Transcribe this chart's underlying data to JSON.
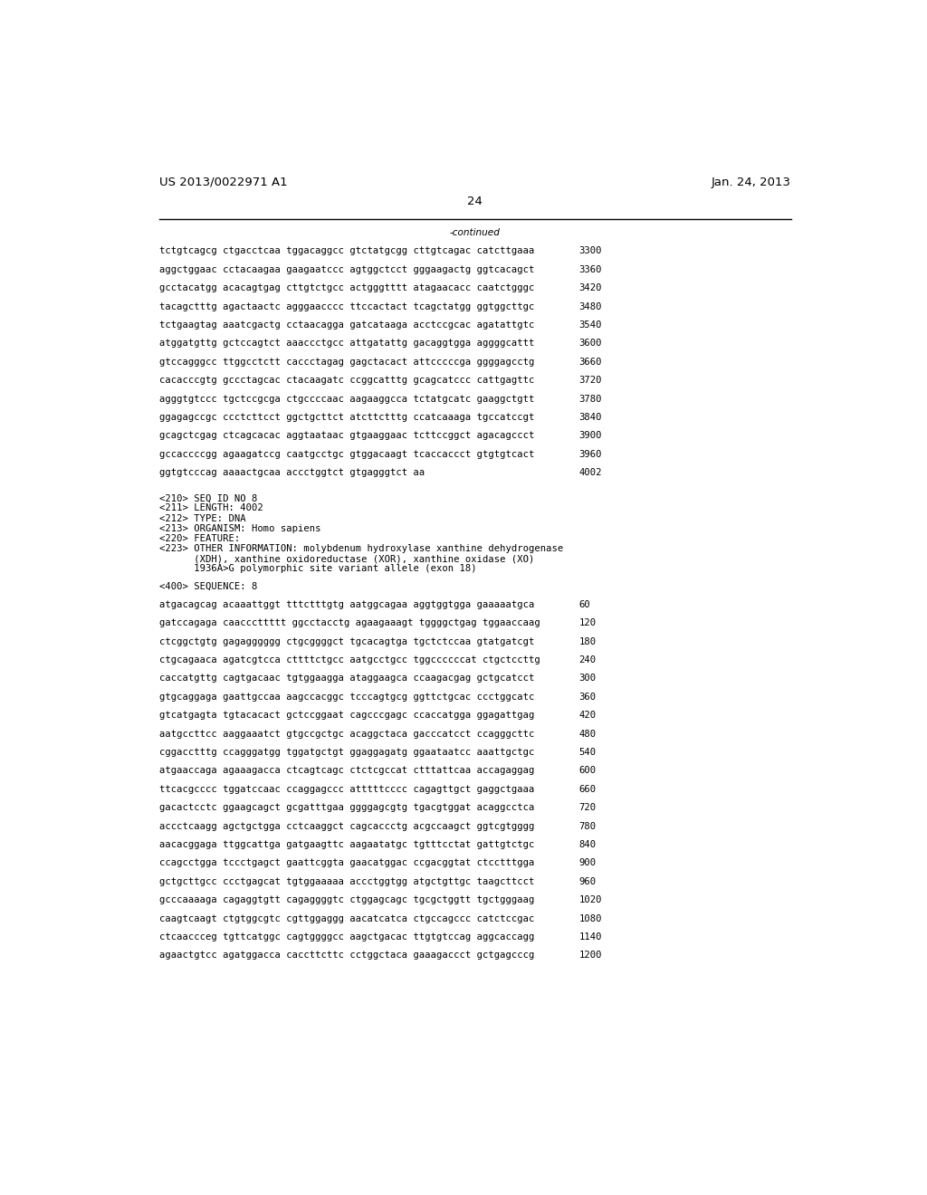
{
  "header_left": "US 2013/0022971 A1",
  "header_right": "Jan. 24, 2013",
  "page_number": "24",
  "continued_label": "-continued",
  "background_color": "#ffffff",
  "text_color": "#000000",
  "continued_lines": [
    [
      "tctgtcagcg ctgacctcaa tggacaggcc gtctatgcgg cttgtcagac catcttgaaa",
      "3300"
    ],
    [
      "aggctggaac cctacaagaa gaagaatccc agtggctcct gggaagactg ggtcacagct",
      "3360"
    ],
    [
      "gcctacatgg acacagtgag cttgtctgcc actgggtttt atagaacacc caatctgggc",
      "3420"
    ],
    [
      "tacagctttg agactaactc agggaacccc ttccactact tcagctatgg ggtggcttgc",
      "3480"
    ],
    [
      "tctgaagtag aaatcgactg cctaacagga gatcataaga acctccgcac agatattgtc",
      "3540"
    ],
    [
      "atggatgttg gctccagtct aaaccctgcc attgatattg gacaggtgga aggggcattt",
      "3600"
    ],
    [
      "gtccagggcc ttggcctctt caccctagag gagctacact attcccccga ggggagcctg",
      "3660"
    ],
    [
      "cacacccgtg gccctagcac ctacaagatc ccggcatttg gcagcatccc cattgagttc",
      "3720"
    ],
    [
      "agggtgtccc tgctccgcga ctgccccaac aagaaggcca tctatgcatc gaaggctgtt",
      "3780"
    ],
    [
      "ggagagccgc ccctcttcct ggctgcttct atcttctttg ccatcaaaga tgccatccgt",
      "3840"
    ],
    [
      "gcagctcgag ctcagcacac aggtaataac gtgaaggaac tcttccggct agacagccct",
      "3900"
    ],
    [
      "gccaccccgg agaagatccg caatgcctgc gtggacaagt tcaccaccct gtgtgtcact",
      "3960"
    ],
    [
      "ggtgtcccag aaaactgcaa accctggtct gtgagggtct aa",
      "4002"
    ]
  ],
  "seq_info_lines": [
    "<210> SEQ ID NO 8",
    "<211> LENGTH: 4002",
    "<212> TYPE: DNA",
    "<213> ORGANISM: Homo sapiens",
    "<220> FEATURE:",
    "<223> OTHER INFORMATION: molybdenum hydroxylase xanthine dehydrogenase",
    "      (XDH), xanthine oxidoreductase (XOR), xanthine oxidase (XO)",
    "      1936A>G polymorphic site variant allele (exon 18)"
  ],
  "seq400_line": "<400> SEQUENCE: 8",
  "sequence_lines": [
    [
      "atgacagcag acaaattggt tttctttgtg aatggcagaa aggtggtgga gaaaaatgca",
      "60"
    ],
    [
      "gatccagaga caacccttttt ggcctacctg agaagaaagt tggggctgag tggaaccaag",
      "120"
    ],
    [
      "ctcggctgtg gagagggggg ctgcggggct tgcacagtga tgctctccaa gtatgatcgt",
      "180"
    ],
    [
      "ctgcagaaca agatcgtcca cttttctgcc aatgcctgcc tggccccccat ctgctccttg",
      "240"
    ],
    [
      "caccatgttg cagtgacaac tgtggaagga ataggaagca ccaagacgag gctgcatcct",
      "300"
    ],
    [
      "gtgcaggaga gaattgccaa aagccacggc tcccagtgcg ggttctgcac ccctggcatc",
      "360"
    ],
    [
      "gtcatgagta tgtacacact gctccggaat cagcccgagc ccaccatgga ggagattgag",
      "420"
    ],
    [
      "aatgccttcc aaggaaatct gtgccgctgc acaggctaca gacccatcct ccagggcttc",
      "480"
    ],
    [
      "cggacctttg ccagggatgg tggatgctgt ggaggagatg ggaataatcc aaattgctgc",
      "540"
    ],
    [
      "atgaaccaga agaaagacca ctcagtcagc ctctcgccat ctttattcaa accagaggag",
      "600"
    ],
    [
      "ttcacgcccc tggatccaac ccaggagccc atttttcccc cagagttgct gaggctgaaa",
      "660"
    ],
    [
      "gacactcctc ggaagcagct gcgatttgaa ggggagcgtg tgacgtggat acaggcctca",
      "720"
    ],
    [
      "accctcaagg agctgctgga cctcaaggct cagcaccctg acgccaagct ggtcgtgggg",
      "780"
    ],
    [
      "aacacggaga ttggcattga gatgaagttc aagaatatgc tgtttcctat gattgtctgc",
      "840"
    ],
    [
      "ccagcctgga tccctgagct gaattcggta gaacatggac ccgacggtat ctcctttgga",
      "900"
    ],
    [
      "gctgcttgcc ccctgagcat tgtggaaaaa accctggtgg atgctgttgc taagcttcct",
      "960"
    ],
    [
      "gcccaaaaga cagaggtgtt cagaggggtc ctggagcagc tgcgctggtt tgctgggaag",
      "1020"
    ],
    [
      "caagtcaagt ctgtggcgtc cgttggaggg aacatcatca ctgccagccc catctccgac",
      "1080"
    ],
    [
      "ctcaaccceg tgttcatggc cagtggggcc aagctgacac ttgtgtccag aggcaccagg",
      "1140"
    ],
    [
      "agaactgtcc agatggacca caccttcttc cctggctaca gaaagaccct gctgagcccg",
      "1200"
    ]
  ]
}
